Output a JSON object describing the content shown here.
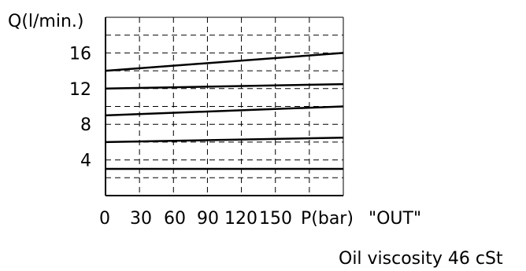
{
  "chart_data": {
    "type": "line",
    "ylabel": "Q(l/min.)",
    "xlabel": "P(bar)",
    "xlabel_suffix": "\"OUT\"",
    "note": "Oil viscosity 46 cSt",
    "x_ticks": [
      0,
      30,
      60,
      90,
      120,
      150
    ],
    "y_ticks": [
      4,
      8,
      12,
      16
    ],
    "xlim": [
      0,
      210
    ],
    "ylim": [
      0,
      20
    ],
    "grid": true,
    "series": [
      {
        "x": [
          0,
          210
        ],
        "values": [
          14,
          16
        ]
      },
      {
        "x": [
          0,
          210
        ],
        "values": [
          12,
          12.5
        ]
      },
      {
        "x": [
          0,
          210
        ],
        "values": [
          9,
          10
        ]
      },
      {
        "x": [
          0,
          210
        ],
        "values": [
          6,
          6.5
        ]
      },
      {
        "x": [
          0,
          210
        ],
        "values": [
          3,
          3
        ]
      }
    ]
  }
}
